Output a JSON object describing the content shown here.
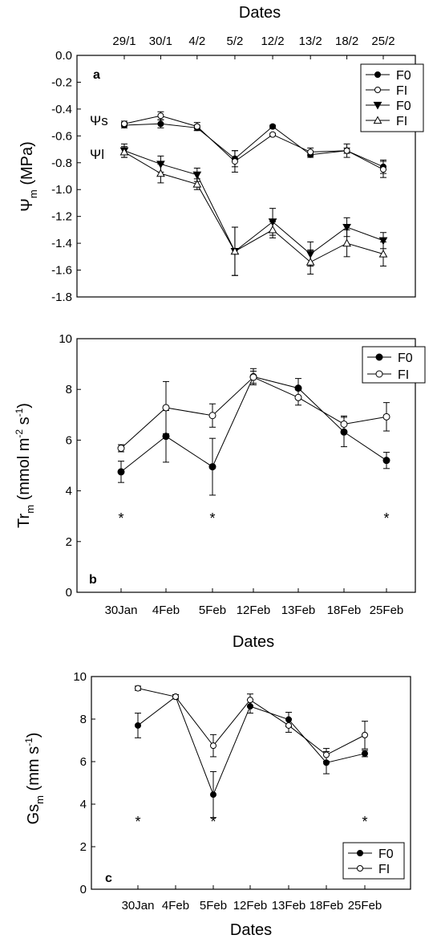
{
  "chart_data": [
    {
      "id": "a",
      "type": "line",
      "panel_label": "a",
      "top_axis_title": "Dates",
      "ylabel_sym": "Ψ",
      "ylabel_sub": "m",
      "ylabel_tail": " (MPa)",
      "ylim": [
        -1.8,
        0.0
      ],
      "yticks": [
        "0.0",
        "-0.2",
        "-0.4",
        "-0.6",
        "-0.8",
        "-1.0",
        "-1.2",
        "-1.4",
        "-1.6",
        "-1.8"
      ],
      "categories": [
        "29/1",
        "30/1",
        "4/2",
        "5/2",
        "12/2",
        "13/2",
        "18/2",
        "25/2"
      ],
      "grid": false,
      "legend_position": "top-right",
      "annotations": [
        "Ψs",
        "Ψl"
      ],
      "series": [
        {
          "name": "F0",
          "marker": "filled-circle",
          "values": [
            -0.52,
            -0.51,
            -0.54,
            -0.77,
            -0.53,
            -0.74,
            -0.71,
            -0.83
          ],
          "errors": [
            0.02,
            0.03,
            0.02,
            0.06,
            0.01,
            0.02,
            0.02,
            0.05
          ]
        },
        {
          "name": "FI",
          "marker": "open-circle",
          "values": [
            -0.51,
            -0.45,
            -0.53,
            -0.79,
            -0.59,
            -0.72,
            -0.71,
            -0.85
          ],
          "errors": [
            0.02,
            0.03,
            0.03,
            0.08,
            0.01,
            0.03,
            0.05,
            0.06
          ]
        },
        {
          "name": "F0",
          "marker": "filled-triangle-down",
          "values": [
            -0.71,
            -0.81,
            -0.89,
            -1.46,
            -1.24,
            -1.48,
            -1.28,
            -1.38
          ],
          "errors": [
            0.05,
            0.06,
            0.05,
            0.18,
            0.1,
            0.09,
            0.07,
            0.06
          ]
        },
        {
          "name": "FI",
          "marker": "open-triangle-up",
          "values": [
            -0.72,
            -0.88,
            -0.96,
            -1.46,
            -1.3,
            -1.54,
            -1.4,
            -1.48
          ],
          "errors": [
            0.04,
            0.07,
            0.04,
            0.18,
            0.06,
            0.09,
            0.1,
            0.09
          ]
        }
      ]
    },
    {
      "id": "b",
      "type": "line",
      "panel_label": "b",
      "ylabel_sym": "Tr",
      "ylabel_sub": "m",
      "ylabel_tail": " (mmol m",
      "ylabel_sup1": "-2",
      "ylabel_mid": " s",
      "ylabel_sup2": "-1",
      "ylabel_end": ")",
      "xlabel": "Dates",
      "ylim": [
        0,
        10
      ],
      "yticks": [
        "0",
        "2",
        "4",
        "6",
        "8",
        "10"
      ],
      "categories": [
        "30Jan",
        "4Feb",
        "5Feb",
        "12Feb",
        "13Feb",
        "18Feb",
        "25Feb"
      ],
      "grid": false,
      "legend_position": "top-right",
      "significance_marks": [
        "*",
        "*",
        "*"
      ],
      "series": [
        {
          "name": "F0",
          "marker": "filled-circle",
          "values": [
            4.75,
            6.15,
            4.95,
            8.5,
            8.05,
            6.32,
            5.2
          ],
          "errors": [
            0.42,
            1.02,
            1.12,
            0.32,
            0.38,
            0.58,
            0.32
          ]
        },
        {
          "name": "FI",
          "marker": "open-circle",
          "values": [
            5.68,
            7.28,
            6.97,
            8.48,
            7.68,
            6.63,
            6.92
          ],
          "errors": [
            0.14,
            1.03,
            0.46,
            0.24,
            0.3,
            0.32,
            0.56
          ]
        }
      ]
    },
    {
      "id": "c",
      "type": "line",
      "panel_label": "c",
      "ylabel_sym": "Gs",
      "ylabel_sub": "m",
      "ylabel_tail": " (mm s",
      "ylabel_sup1": "-1",
      "ylabel_end": ")",
      "xlabel": "Dates",
      "ylim": [
        0,
        10
      ],
      "yticks": [
        "0",
        "2",
        "4",
        "6",
        "8",
        "10"
      ],
      "categories": [
        "30Jan",
        "4Feb",
        "5Feb",
        "12Feb",
        "13Feb",
        "18Feb",
        "25Feb"
      ],
      "grid": false,
      "legend_position": "bottom-right",
      "significance_marks": [
        "*",
        "*",
        "*"
      ],
      "series": [
        {
          "name": "F0",
          "marker": "filled-circle",
          "values": [
            7.7,
            9.05,
            4.45,
            8.6,
            7.98,
            5.95,
            6.38
          ],
          "errors": [
            0.58,
            0.1,
            1.08,
            0.32,
            0.34,
            0.52,
            0.15
          ]
        },
        {
          "name": "FI",
          "marker": "open-circle",
          "values": [
            9.45,
            9.05,
            6.75,
            8.9,
            7.7,
            6.32,
            7.25
          ],
          "errors": [
            0.1,
            0.1,
            0.52,
            0.28,
            0.32,
            0.3,
            0.65
          ]
        }
      ]
    }
  ]
}
